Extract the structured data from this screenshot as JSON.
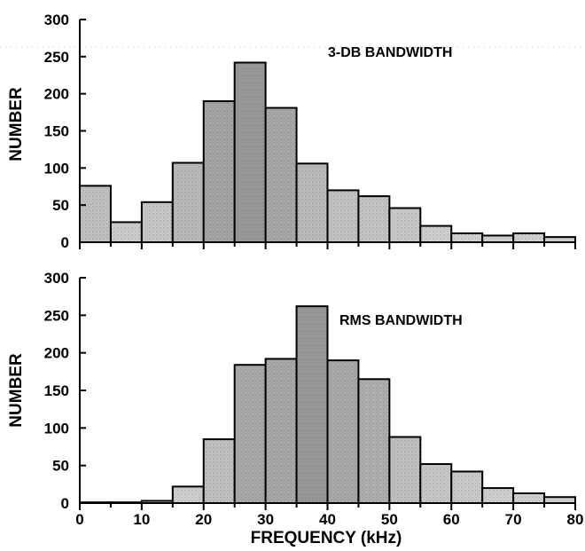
{
  "chart_data": [
    {
      "type": "bar",
      "title": "3-DB BANDWIDTH",
      "xlabel": "",
      "ylabel": "NUMBER",
      "xlim": [
        0,
        80
      ],
      "ylim": [
        0,
        300
      ],
      "bin_width": 5,
      "x": [
        0,
        5,
        10,
        15,
        20,
        25,
        30,
        35,
        40,
        45,
        50,
        55,
        60,
        65,
        70,
        75
      ],
      "values": [
        76,
        27,
        54,
        107,
        190,
        242,
        181,
        106,
        70,
        62,
        46,
        22,
        12,
        9,
        12,
        7
      ],
      "y_ticks": [
        "0",
        "50",
        "100",
        "150",
        "200",
        "250",
        "300"
      ],
      "x_ticks": []
    },
    {
      "type": "bar",
      "title": "RMS BANDWIDTH",
      "xlabel": "FREQUENCY (kHz)",
      "ylabel": "NUMBER",
      "xlim": [
        0,
        80
      ],
      "ylim": [
        0,
        300
      ],
      "bin_width": 5,
      "x": [
        0,
        5,
        10,
        15,
        20,
        25,
        30,
        35,
        40,
        45,
        50,
        55,
        60,
        65,
        70,
        75
      ],
      "values": [
        1,
        1,
        3,
        22,
        85,
        184,
        192,
        262,
        190,
        165,
        88,
        52,
        42,
        20,
        13,
        8
      ],
      "y_ticks": [
        "0",
        "50",
        "100",
        "150",
        "200",
        "250",
        "300"
      ],
      "x_ticks": [
        "0",
        "10",
        "20",
        "30",
        "40",
        "50",
        "60",
        "70",
        "80"
      ]
    }
  ],
  "colors": {
    "bar_light": "#cfcfcf",
    "bar_dark": "#9a9a9a",
    "stroke": "#000000"
  }
}
